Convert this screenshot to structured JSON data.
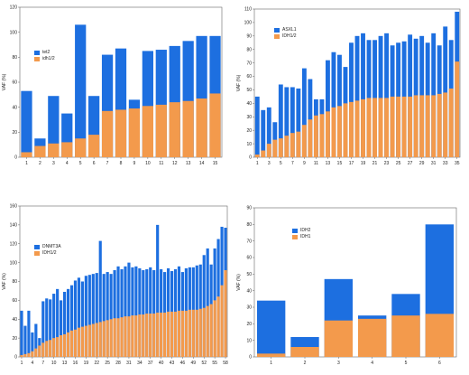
{
  "colors": {
    "blue": "#1d6fe0",
    "orange": "#f39a4c",
    "axis": "#666666"
  },
  "chart_data": [
    {
      "type": "bar",
      "stacked": false,
      "ylabel": "VAF (%)",
      "ylim": [
        0,
        120
      ],
      "yticks": [
        0,
        20,
        40,
        60,
        80,
        100,
        120
      ],
      "categories": [
        "1",
        "2",
        "3",
        "4",
        "5",
        "6",
        "7",
        "8",
        "9",
        "10",
        "11",
        "12",
        "13",
        "14",
        "15"
      ],
      "xticklabels": [
        "1",
        "2",
        "3",
        "4",
        "5",
        "6",
        "7",
        "8",
        "9",
        "10",
        "11",
        "12",
        "13",
        "14",
        "15"
      ],
      "legend_position": "top-left",
      "series": [
        {
          "name": "tet2",
          "color": "#1d6fe0",
          "values": [
            53,
            15,
            49,
            35,
            106,
            49,
            82,
            87,
            46,
            85,
            86,
            89,
            93,
            97,
            97
          ]
        },
        {
          "name": "idh1/2",
          "color": "#f39a4c",
          "values": [
            4,
            9,
            11,
            12,
            15,
            18,
            37,
            38,
            39,
            41,
            42,
            44,
            45,
            47,
            51
          ]
        }
      ]
    },
    {
      "type": "bar",
      "stacked": false,
      "ylabel": "VAF (%)",
      "ylim": [
        0,
        110
      ],
      "yticks": [
        0,
        10,
        20,
        30,
        40,
        50,
        60,
        70,
        80,
        90,
        100,
        110
      ],
      "categories": [
        "1",
        "2",
        "3",
        "4",
        "5",
        "6",
        "7",
        "8",
        "9",
        "10",
        "11",
        "12",
        "13",
        "14",
        "15",
        "16",
        "17",
        "18",
        "19",
        "20",
        "21",
        "22",
        "23",
        "24",
        "25",
        "26",
        "27",
        "28",
        "29",
        "30",
        "31",
        "32",
        "33",
        "34",
        "35"
      ],
      "xticklabels": [
        "1",
        "3",
        "5",
        "7",
        "9",
        "11",
        "13",
        "15",
        "17",
        "19",
        "21",
        "23",
        "25",
        "27",
        "29",
        "31",
        "33",
        "35"
      ],
      "legend_position": "top-left",
      "series": [
        {
          "name": "ASXL1",
          "color": "#1d6fe0",
          "values": [
            45,
            35,
            37,
            26,
            54,
            52,
            52,
            51,
            66,
            58,
            43,
            43,
            72,
            78,
            76,
            67,
            85,
            90,
            92,
            87,
            87,
            90,
            92,
            83,
            85,
            86,
            91,
            88,
            90,
            85,
            92,
            83,
            97,
            87,
            108
          ]
        },
        {
          "name": "IDH1/2",
          "color": "#f39a4c",
          "values": [
            2,
            5,
            10,
            13,
            14,
            16,
            18,
            19,
            24,
            28,
            31,
            32,
            34,
            37,
            38,
            40,
            41,
            42,
            43,
            44,
            44,
            44,
            44,
            45,
            45,
            45,
            45,
            46,
            46,
            46,
            46,
            47,
            48,
            51,
            71
          ]
        }
      ]
    },
    {
      "type": "bar",
      "stacked": false,
      "ylabel": "VAF (%)",
      "ylim": [
        0,
        160
      ],
      "yticks": [
        0,
        20,
        40,
        60,
        80,
        100,
        120,
        140,
        160
      ],
      "categories": [
        "1",
        "2",
        "3",
        "4",
        "5",
        "6",
        "7",
        "8",
        "9",
        "10",
        "11",
        "12",
        "13",
        "14",
        "15",
        "16",
        "17",
        "18",
        "19",
        "20",
        "21",
        "22",
        "23",
        "24",
        "25",
        "26",
        "27",
        "28",
        "29",
        "30",
        "31",
        "32",
        "33",
        "34",
        "35",
        "36",
        "37",
        "38",
        "39",
        "40",
        "41",
        "42",
        "43",
        "44",
        "45",
        "46",
        "47",
        "48",
        "49",
        "50",
        "51",
        "52",
        "53",
        "54",
        "55",
        "56",
        "57",
        "58"
      ],
      "xticklabels": [
        "1",
        "4",
        "7",
        "10",
        "13",
        "16",
        "19",
        "22",
        "25",
        "28",
        "31",
        "34",
        "37",
        "40",
        "43",
        "46",
        "49",
        "52",
        "55",
        "58"
      ],
      "legend_position": "top-left",
      "series": [
        {
          "name": "DNMT3A",
          "color": "#1d6fe0",
          "values": [
            49,
            33,
            49,
            26,
            35,
            20,
            59,
            62,
            61,
            67,
            72,
            60,
            69,
            72,
            76,
            81,
            84,
            80,
            86,
            87,
            88,
            89,
            123,
            88,
            90,
            88,
            92,
            96,
            93,
            96,
            100,
            95,
            96,
            94,
            92,
            93,
            95,
            92,
            140,
            93,
            90,
            94,
            91,
            93,
            96,
            90,
            94,
            95,
            95,
            97,
            98,
            108,
            115,
            98,
            115,
            125,
            138,
            137
          ]
        },
        {
          "name": "IDH1/2",
          "color": "#f39a4c",
          "values": [
            2,
            3,
            4,
            6,
            9,
            12,
            15,
            17,
            18,
            20,
            21,
            23,
            24,
            26,
            28,
            29,
            31,
            32,
            33,
            34,
            35,
            36,
            37,
            38,
            39,
            40,
            41,
            41,
            42,
            43,
            43,
            44,
            44,
            45,
            45,
            46,
            46,
            46,
            47,
            47,
            47,
            48,
            48,
            48,
            49,
            49,
            49,
            50,
            50,
            50,
            51,
            52,
            54,
            56,
            60,
            64,
            76,
            92
          ]
        }
      ]
    },
    {
      "type": "bar",
      "stacked": false,
      "ylabel": "VAF (%)",
      "ylim": [
        0,
        90
      ],
      "yticks": [
        0,
        10,
        20,
        30,
        40,
        50,
        60,
        70,
        80,
        90
      ],
      "categories": [
        "1",
        "2",
        "3",
        "4",
        "5",
        "6"
      ],
      "xticklabels": [
        "1",
        "2",
        "3",
        "4",
        "5",
        "6"
      ],
      "legend_position": "top-left",
      "series": [
        {
          "name": "IDH2",
          "color": "#1d6fe0",
          "values": [
            34,
            12,
            47,
            25,
            38,
            80
          ]
        },
        {
          "name": "IDH1",
          "color": "#f39a4c",
          "values": [
            2,
            6,
            22,
            23,
            25,
            26
          ]
        }
      ]
    }
  ]
}
